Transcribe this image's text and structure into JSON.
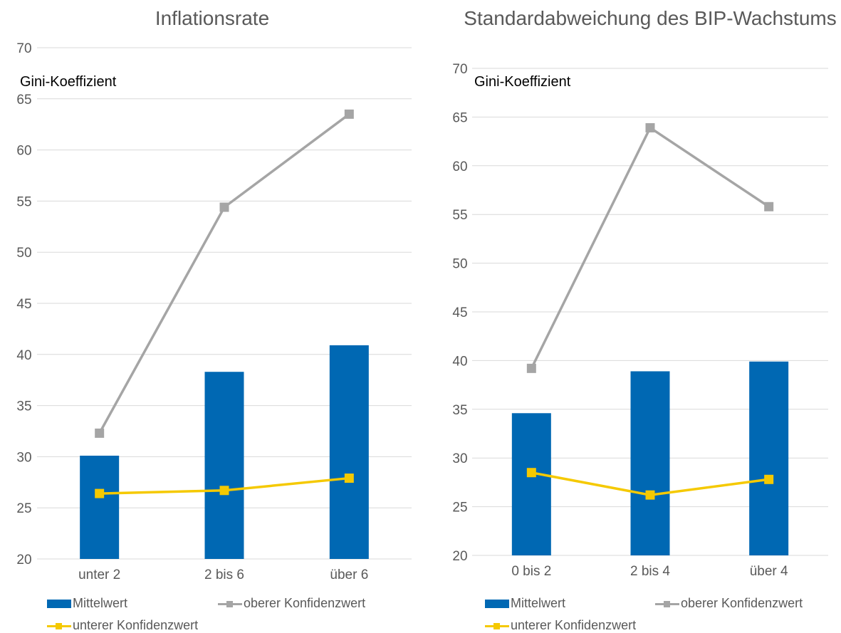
{
  "colors": {
    "bar": "#0068B3",
    "upper": "#A5A5A5",
    "lower": "#F5C900",
    "grid": "#D9D9D9",
    "text": "#595959"
  },
  "legend": {
    "mean": "Mittelwert",
    "upper": "oberer Konfidenzwert",
    "lower": "unterer Konfidenzwert"
  },
  "chart_data": [
    {
      "type": "bar",
      "title": "Inflationsrate",
      "ylabel": "Gini-Koeffizient",
      "xlabel": "",
      "ylim": [
        20,
        70
      ],
      "yticks": [
        20,
        25,
        30,
        35,
        40,
        45,
        50,
        55,
        60,
        65,
        70
      ],
      "grid": true,
      "legend_position": "bottom",
      "categories": [
        "unter 2",
        "2 bis 6",
        "über 6"
      ],
      "series": [
        {
          "name": "Mittelwert",
          "kind": "bar",
          "values": [
            30.1,
            38.3,
            40.9
          ]
        },
        {
          "name": "oberer Konfidenzwert",
          "kind": "line",
          "values": [
            32.3,
            54.4,
            63.5
          ]
        },
        {
          "name": "unterer Konfidenzwert",
          "kind": "line",
          "values": [
            26.4,
            26.7,
            27.9
          ]
        }
      ]
    },
    {
      "type": "bar",
      "title": "Standardabweichung des BIP-Wachstums",
      "ylabel": "Gini-Koeffizient",
      "xlabel": "",
      "ylim": [
        20,
        70
      ],
      "yticks": [
        20,
        25,
        30,
        35,
        40,
        45,
        50,
        55,
        60,
        65,
        70
      ],
      "grid": true,
      "legend_position": "bottom",
      "categories": [
        "0 bis 2",
        "2 bis 4",
        "über 4"
      ],
      "series": [
        {
          "name": "Mittelwert",
          "kind": "bar",
          "values": [
            34.6,
            38.9,
            39.9
          ]
        },
        {
          "name": "oberer Konfidenzwert",
          "kind": "line",
          "values": [
            39.2,
            63.9,
            55.8
          ]
        },
        {
          "name": "unterer Konfidenzwert",
          "kind": "line",
          "values": [
            28.5,
            26.2,
            27.8
          ]
        }
      ]
    }
  ]
}
